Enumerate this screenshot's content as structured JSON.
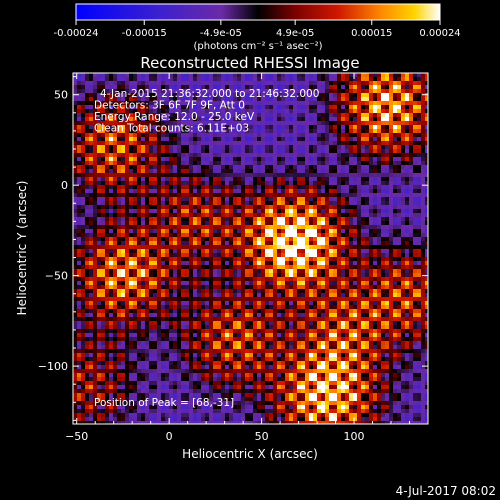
{
  "colorbar": {
    "tick_labels": [
      "-0.00024",
      "-0.00015",
      "-4.9e-05",
      "4.9e-05",
      "0.00015",
      "0.00024"
    ],
    "tick_values": [
      -0.00024,
      -0.00015,
      -4.9e-05,
      4.9e-05,
      0.00015,
      0.00024
    ],
    "min": -0.00024,
    "max": 0.00024,
    "unit_label": "(photons cm⁻² s⁻¹ asec⁻²)"
  },
  "chart_data": {
    "type": "heatmap",
    "title": "Reconstructed RHESSI Image",
    "xlabel": "Heliocentric X (arcsec)",
    "ylabel": "Heliocentric Y (arcsec)",
    "xlim": [
      -52,
      140
    ],
    "ylim": [
      -132,
      62
    ],
    "xticks": [
      -50,
      0,
      50,
      100
    ],
    "yticks": [
      50,
      0,
      -50,
      -100
    ],
    "xtick_labels": [
      "−50",
      "0",
      "50",
      "100"
    ],
    "ytick_labels": [
      "50",
      "0",
      "−50",
      "−100"
    ],
    "annotations": [
      "4-Jan-2015 21:36:32.000 to 21:46:32.000",
      "Detectors: 3F 6F 7F 9F, Att 0",
      "Energy Range: 12.0 - 25.0 keV",
      "Clean     Total counts: 6.11E+03"
    ],
    "peak_label": "Position of Peak = [68,-31]",
    "peak": [
      68,
      -31
    ],
    "hotspots": [
      {
        "x": 68,
        "y": -31,
        "value": 1.0
      },
      {
        "x": 118,
        "y": 44,
        "value": 0.75
      },
      {
        "x": 85,
        "y": -117,
        "value": 0.8
      },
      {
        "x": -25,
        "y": -50,
        "value": 0.65
      },
      {
        "x": -30,
        "y": 22,
        "value": 0.55
      },
      {
        "x": 35,
        "y": -85,
        "value": 0.5
      },
      {
        "x": 130,
        "y": -60,
        "value": 0.45
      },
      {
        "x": 15,
        "y": -20,
        "value": 0.4
      },
      {
        "x": 95,
        "y": -80,
        "value": 0.45
      },
      {
        "x": -45,
        "y": -110,
        "value": 0.35
      }
    ]
  },
  "footer": {
    "date": "4-Jul-2017 08:02"
  }
}
